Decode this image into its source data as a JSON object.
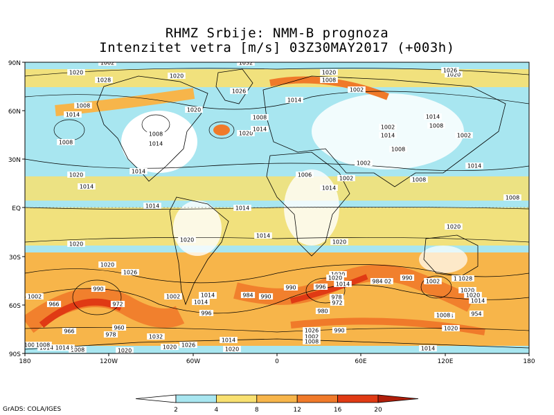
{
  "title": {
    "line1": "RHMZ Srbije: NMM-B prognoza",
    "line2": "Intenzitet vetra [m/s] 03Z30MAY2017 (+003h)"
  },
  "axes": {
    "lat_labels": [
      "90N",
      "60N",
      "30N",
      "EQ",
      "30S",
      "60S",
      "90S"
    ],
    "lon_labels": [
      "180",
      "120W",
      "60W",
      "0",
      "60E",
      "120E",
      "180"
    ]
  },
  "colorbar": {
    "levels": [
      "2",
      "4",
      "8",
      "12",
      "16",
      "20"
    ],
    "colors": [
      "#ffffff",
      "#a8e6f0",
      "#f8e070",
      "#f7b54a",
      "#f07a2a",
      "#e03a14",
      "#b01e0a"
    ]
  },
  "pressure_labels": [
    "1032",
    "1032",
    "1020",
    "1028",
    "1026",
    "1020",
    "1020",
    "1008",
    "1002",
    "1020",
    "1026",
    "1014",
    "1008",
    "1014",
    "1020",
    "1008",
    "1008",
    "1020",
    "1014",
    "1014",
    "1008",
    "1002",
    "1002",
    "1014",
    "1008",
    "1014",
    "1008",
    "1002",
    "1014",
    "1014",
    "1002",
    "1008",
    "1006",
    "1014",
    "1008",
    "1020",
    "1014",
    "1014",
    "1014",
    "1020",
    "1020",
    "1020",
    "1014",
    "1020",
    "1020",
    "1026",
    "1020",
    "990",
    "990",
    "1014",
    "1002",
    "972",
    "966",
    "1002",
    "1014",
    "1014",
    "1002",
    "984",
    "990",
    "996",
    "1014",
    "1020",
    "1026",
    "984",
    "990",
    "978",
    "972",
    "980",
    "960",
    "966",
    "978",
    "984",
    "996",
    "1002",
    "1020",
    "1028",
    "1020",
    "1014",
    "1008",
    "954",
    "990",
    "1020",
    "1026",
    "1002",
    "1008",
    "1014",
    "1032",
    "1008",
    "1020",
    "1026",
    "1014",
    "1008",
    "1002",
    "1014",
    "1020",
    "1020",
    "1014",
    "1008",
    "1002"
  ],
  "credit": "GrADS: COLA/IGES"
}
